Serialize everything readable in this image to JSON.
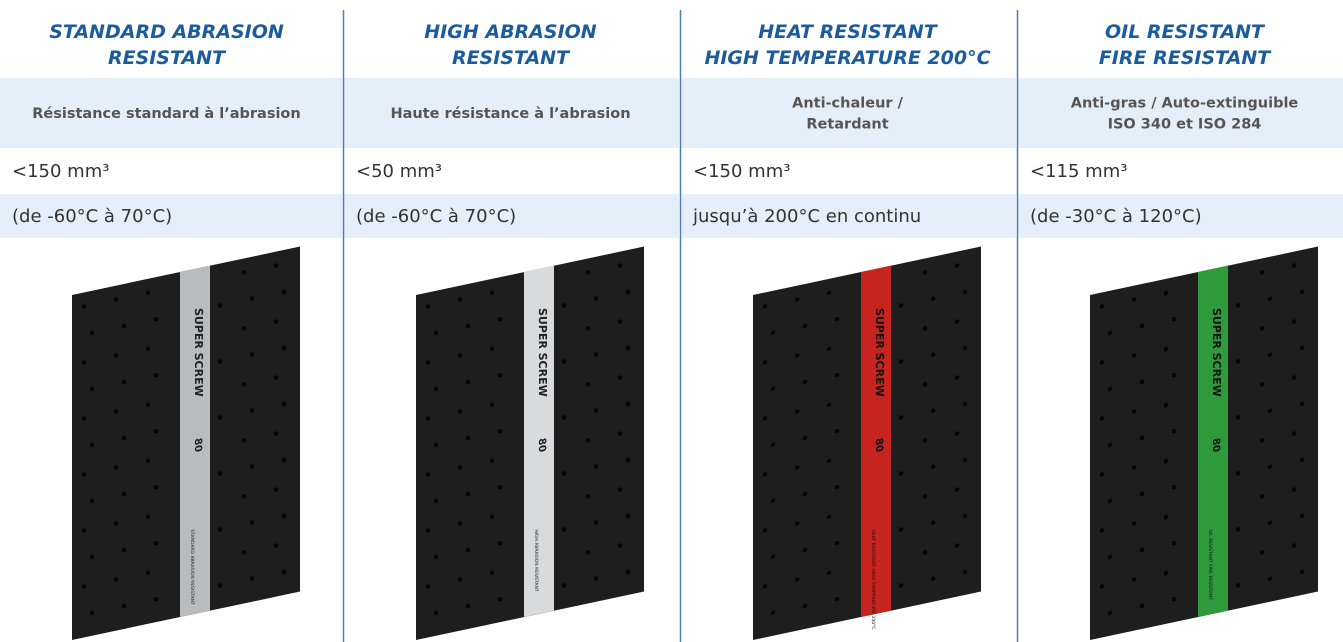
{
  "columns": [
    {
      "title_lines": [
        "STANDARD ABRASION",
        "RESISTANT"
      ],
      "subtitle_lines": [
        "Résistance standard à l’abrasion"
      ],
      "abrasion": "<150 mm³",
      "temperature": "(de -60°C à 70°C)",
      "image": {
        "brand": "SUPER SCREW",
        "hardness": "80",
        "stripe_label": "STANDARD ABRASION RESISTANT",
        "stripe_color": "#b9bcbe"
      }
    },
    {
      "title_lines": [
        "HIGH ABRASION",
        "RESISTANT"
      ],
      "subtitle_lines": [
        "Haute résistance à l’abrasion"
      ],
      "abrasion": "<50 mm³",
      "temperature": "(de -60°C à 70°C)",
      "image": {
        "brand": "SUPER SCREW",
        "hardness": "80",
        "stripe_label": "HIGH ABRASION RESISTANT",
        "stripe_color": "#d8dadb"
      }
    },
    {
      "title_lines": [
        "HEAT RESISTANT",
        "HIGH TEMPERATURE 200°C"
      ],
      "subtitle_lines": [
        "Anti-chaleur /",
        "Retardant"
      ],
      "abrasion": "<150 mm³",
      "temperature": "jusqu’à 200°C en continu",
      "image": {
        "brand": "SUPER SCREW",
        "hardness": "80",
        "stripe_label": "HEAT RESISTANT HIGH TEMPERATURE 200°C",
        "stripe_color": "#c8241f"
      }
    },
    {
      "title_lines": [
        "OIL RESISTANT",
        "FIRE RESISTANT"
      ],
      "subtitle_lines": [
        "Anti-gras / Auto-extinguible",
        "ISO 340 et ISO 284"
      ],
      "abrasion": "<115 mm³",
      "temperature": "(de -30°C à 120°C)",
      "image": {
        "brand": "SUPER SCREW",
        "hardness": "80",
        "stripe_label": "OIL RESISTANT FIRE RESISTANT",
        "stripe_color": "#2f9a3c"
      }
    }
  ]
}
